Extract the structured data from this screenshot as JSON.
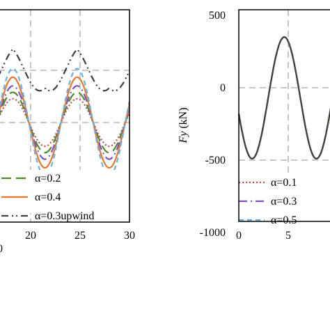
{
  "chart_data": [
    {
      "type": "line",
      "title": "",
      "xlabel": "",
      "ylabel": "",
      "xlim": [
        10,
        30
      ],
      "x_ticks_visible": [
        "20",
        "25",
        "30"
      ],
      "x_tick_fragment": "0",
      "grid": true,
      "grid_style": "dashed",
      "legend_placement": "bottom-left",
      "series": [
        {
          "name": "α=0.1",
          "color": "#c0504d",
          "dash": "dotted",
          "in_legend": false,
          "amplitude": 0.55,
          "offset": 0.0
        },
        {
          "name": "α=0.2",
          "color": "#4f8a2a",
          "dash": "long-dash",
          "in_legend": true,
          "amplitude": 0.7,
          "offset": 0.0
        },
        {
          "name": "α=0.3",
          "color": "#7b4fc6",
          "dash": "dash-dot",
          "in_legend": false,
          "amplitude": 0.85,
          "offset": 0.0
        },
        {
          "name": "α=0.4",
          "color": "#e8762c",
          "dash": "solid",
          "in_legend": true,
          "amplitude": 1.05,
          "offset": 0.0
        },
        {
          "name": "α=0.5",
          "color": "#6ab0e0",
          "dash": "dashed",
          "in_legend": false,
          "amplitude": 1.25,
          "offset": 0.0
        },
        {
          "name": "α=0.3upwind",
          "color": "#404040",
          "dash": "dash-dot-dot",
          "in_legend": true,
          "amplitude": 0.45,
          "offset": 1.25
        }
      ],
      "legend": [
        "α=0.2",
        "α=0.4",
        "α=0.3upwind"
      ],
      "period": 6.5,
      "peak_x": [
        18.2,
        24.8
      ]
    },
    {
      "type": "line",
      "title": "",
      "xlabel": "",
      "ylabel": "Fy (kN)",
      "ylabel_symbol": "Fy",
      "ylabel_unit": "(kN)",
      "ylim": [
        -1000,
        500
      ],
      "yticks": [
        "500",
        "0",
        "-500",
        "-1000"
      ],
      "xticks": [
        "0",
        "5"
      ],
      "grid": true,
      "grid_style": "dashed",
      "legend_placement": "bottom",
      "series": [
        {
          "name": "α=0.1",
          "color": "#c0504d",
          "dash": "dotted"
        },
        {
          "name": "α=0.3",
          "color": "#7b4fc6",
          "dash": "dash-dot"
        },
        {
          "name": "α=0.5",
          "color": "#6ab0e0",
          "dash": "dashed"
        },
        {
          "name": "α=0.2",
          "color": "#4f8a2a",
          "dash": "long-dash"
        },
        {
          "name": "α=0.4",
          "color": "#e8762c",
          "dash": "solid"
        },
        {
          "name": "α=0.3upwind",
          "color": "#404040",
          "dash": "solid"
        }
      ],
      "legend_visible": [
        "α=0.1",
        "α=0.3",
        "α=0.5"
      ],
      "legend_visible_labels": [
        "α=0.1",
        "α=0.3",
        "α=0.5"
      ],
      "curve": {
        "mean": -70,
        "amplitude": 420,
        "period": 6.5,
        "peak_x": 4.6
      }
    }
  ]
}
